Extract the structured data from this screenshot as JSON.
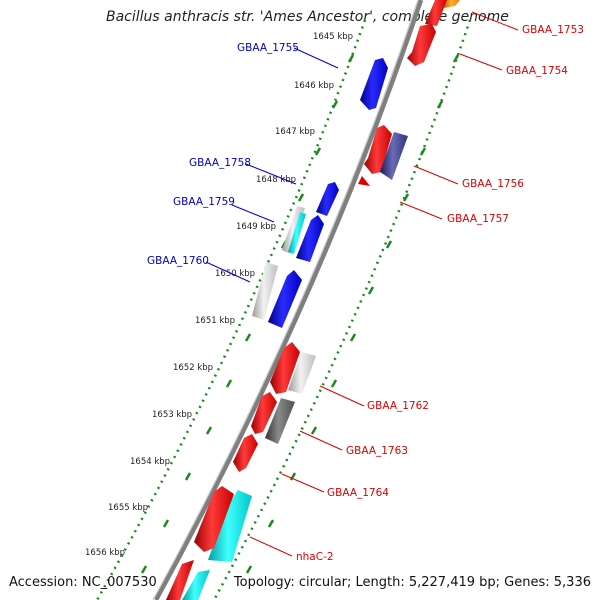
{
  "title": "Bacillus anthracis str. 'Ames Ancestor', complete genome",
  "footer": {
    "accession": "Accession: NC_007530",
    "summary": "Topology: circular; Length: 5,227,419 bp; Genes: 5,336"
  },
  "colors": {
    "backbone": "#8a8a8a",
    "tick_dots": "#1a8a1a",
    "forward_label": "#0000cc",
    "reverse_label": "#dd0000"
  },
  "ticks": [
    "1645 kbp",
    "1646 kbp",
    "1647 kbp",
    "1648 kbp",
    "1649 kbp",
    "1650 kbp",
    "1651 kbp",
    "1652 kbp",
    "1653 kbp",
    "1654 kbp",
    "1655 kbp",
    "1656 kbp"
  ],
  "forward_labels": [
    "GBAA_1755",
    "GBAA_1758",
    "GBAA_1759",
    "GBAA_1760"
  ],
  "reverse_labels": [
    "GBAA_1753",
    "GBAA_1754",
    "GBAA_1756",
    "GBAA_1757",
    "GBAA_1762",
    "GBAA_1763",
    "GBAA_1764",
    "nhaC-2"
  ]
}
